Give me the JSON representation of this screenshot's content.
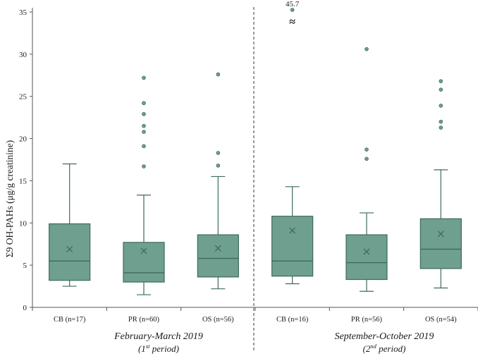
{
  "chart_data": {
    "type": "boxplot",
    "ylabel": "Σ9 OH-PAHs (μg/g creatinine)",
    "ylim": [
      0,
      35
    ],
    "yticks": [
      "0",
      "5",
      "10",
      "15",
      "20",
      "25",
      "30",
      "35"
    ],
    "colors": {
      "box_fill": "#6f9f8e",
      "box_stroke": "#3e6b5b",
      "outlier_fill": "#6f9f8e",
      "axis": "#555555",
      "divider": "#333333"
    },
    "groups": [
      {
        "label": "CB (n=17)",
        "period": 1,
        "whisker_low": 2.5,
        "q1": 3.2,
        "median": 5.5,
        "q3": 9.9,
        "whisker_high": 17.0,
        "mean": 6.9,
        "outliers": []
      },
      {
        "label": "PR (n=60)",
        "period": 1,
        "whisker_low": 1.5,
        "q1": 3.0,
        "median": 4.1,
        "q3": 7.7,
        "whisker_high": 13.3,
        "mean": 6.7,
        "outliers": [
          16.7,
          19.1,
          20.8,
          21.5,
          22.9,
          24.2,
          27.2
        ]
      },
      {
        "label": "OS (n=56)",
        "period": 1,
        "whisker_low": 2.2,
        "q1": 3.6,
        "median": 5.8,
        "q3": 8.6,
        "whisker_high": 15.5,
        "mean": 7.0,
        "outliers": [
          16.8,
          18.3,
          27.6
        ]
      },
      {
        "label": "CB (n=16)",
        "period": 2,
        "whisker_low": 2.8,
        "q1": 3.7,
        "median": 5.5,
        "q3": 10.8,
        "whisker_high": 14.3,
        "mean": 9.1,
        "outliers": [],
        "off_scale_outlier": "45.7",
        "break_symbol": "≈"
      },
      {
        "label": "PR (n=56)",
        "period": 2,
        "whisker_low": 1.9,
        "q1": 3.3,
        "median": 5.3,
        "q3": 8.6,
        "whisker_high": 11.2,
        "mean": 6.6,
        "outliers": [
          17.6,
          18.7,
          30.6
        ]
      },
      {
        "label": "OS (n=54)",
        "period": 2,
        "whisker_low": 2.3,
        "q1": 4.6,
        "median": 6.9,
        "q3": 10.5,
        "whisker_high": 16.3,
        "mean": 8.7,
        "outliers": [
          21.3,
          22.0,
          23.9,
          25.8,
          26.8
        ]
      }
    ],
    "periods": [
      {
        "name": "February-March 2019",
        "sub_pre": "(1",
        "sub_sup": "st",
        "sub_post": " period)"
      },
      {
        "name": "September-October 2019",
        "sub_pre": "(2",
        "sub_sup": "nd",
        "sub_post": " period)"
      }
    ]
  }
}
